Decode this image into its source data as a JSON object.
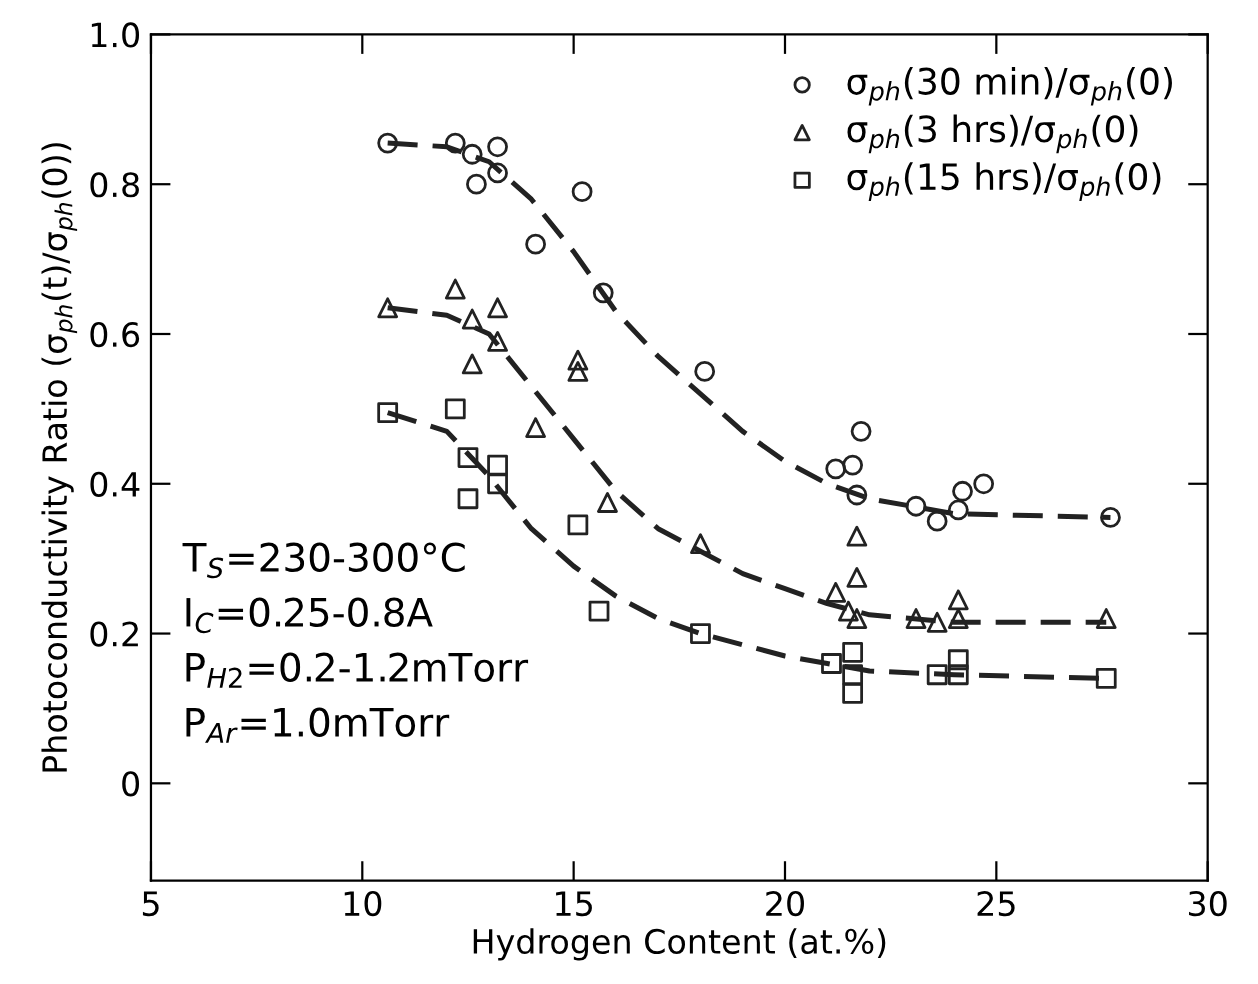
{
  "chart_data": {
    "type": "scatter",
    "xlabel": "Hydrogen Content (at.%)",
    "ylabel": "Photoconductivity Ratio (σ$_{ph}$(t)/σ$_{ph}$(0))",
    "xlim": [
      5,
      30
    ],
    "xticks": [
      5,
      10,
      15,
      20,
      25,
      30
    ],
    "ylim": [
      -0.13,
      1.0
    ],
    "yticks": [
      0,
      0.2,
      0.4,
      0.6,
      0.8,
      {
        "value": 1.0,
        "label": "1.0"
      }
    ],
    "grid": false,
    "legend": "top right",
    "series": [
      {
        "name": "σ$_{ph}$(30 min)/σ$_{ph}$(0)",
        "marker": "circle",
        "color": "#222222",
        "x": [
          10.6,
          12.2,
          12.6,
          13.2,
          12.7,
          13.2,
          14.1,
          15.2,
          15.7,
          18.1,
          21.2,
          21.6,
          21.7,
          21.8,
          23.1,
          23.6,
          24.1,
          24.2,
          24.7,
          27.7
        ],
        "values": [
          0.855,
          0.855,
          0.84,
          0.85,
          0.8,
          0.815,
          0.72,
          0.79,
          0.655,
          0.55,
          0.42,
          0.425,
          0.385,
          0.47,
          0.37,
          0.35,
          0.365,
          0.39,
          0.4,
          0.355
        ]
      },
      {
        "name": "σ$_{ph}$(3 hrs)/σ$_{ph}$(0)",
        "marker": "triangle",
        "color": "#222222",
        "x": [
          10.6,
          12.2,
          12.6,
          13.2,
          12.6,
          13.2,
          14.1,
          15.1,
          15.1,
          15.8,
          18.0,
          21.2,
          21.7,
          21.7,
          21.5,
          21.7,
          23.1,
          23.6,
          24.1,
          24.1,
          27.6
        ],
        "values": [
          0.635,
          0.66,
          0.62,
          0.635,
          0.56,
          0.59,
          0.475,
          0.565,
          0.55,
          0.375,
          0.32,
          0.255,
          0.33,
          0.275,
          0.23,
          0.22,
          0.22,
          0.215,
          0.245,
          0.22,
          0.22
        ]
      },
      {
        "name": "σ$_{ph}$(15 hrs)/σ$_{ph}$(0)",
        "marker": "square",
        "color": "#222222",
        "x": [
          10.6,
          12.2,
          12.5,
          12.5,
          13.2,
          13.2,
          15.1,
          15.6,
          18.0,
          21.1,
          21.6,
          21.6,
          21.6,
          23.6,
          24.1,
          24.1,
          27.6
        ],
        "values": [
          0.495,
          0.5,
          0.435,
          0.38,
          0.425,
          0.4,
          0.345,
          0.23,
          0.2,
          0.16,
          0.175,
          0.145,
          0.12,
          0.145,
          0.165,
          0.145,
          0.14
        ]
      },
      {
        "type": "line",
        "marker": "none",
        "line_style": "dashed",
        "color": "#222222",
        "x": [
          10.6,
          12,
          13,
          14,
          15,
          16,
          17,
          18,
          19,
          20,
          21,
          22,
          23,
          24,
          27.7
        ],
        "values": [
          0.855,
          0.85,
          0.83,
          0.78,
          0.71,
          0.63,
          0.57,
          0.52,
          0.47,
          0.43,
          0.4,
          0.38,
          0.37,
          0.36,
          0.355
        ]
      },
      {
        "type": "line",
        "marker": "none",
        "line_style": "dashed",
        "color": "#222222",
        "x": [
          10.6,
          12,
          13,
          14,
          15,
          16,
          17,
          18,
          19,
          20,
          21,
          22,
          24,
          27.6
        ],
        "values": [
          0.635,
          0.625,
          0.6,
          0.53,
          0.46,
          0.39,
          0.34,
          0.31,
          0.28,
          0.26,
          0.24,
          0.225,
          0.215,
          0.215
        ]
      },
      {
        "type": "line",
        "marker": "none",
        "line_style": "dashed",
        "color": "#222222",
        "x": [
          10.6,
          12,
          13,
          14,
          15,
          16,
          17,
          18,
          19,
          20,
          21,
          22,
          24,
          27.6
        ],
        "values": [
          0.495,
          0.47,
          0.41,
          0.34,
          0.29,
          0.25,
          0.22,
          0.2,
          0.185,
          0.17,
          0.16,
          0.15,
          0.145,
          0.14
        ]
      }
    ],
    "annotations": [
      "T$_{S}$=230-300°C",
      "I$_{C}$=0.25-0.8A",
      "P$_{H2}$=0.2-1.2mTorr",
      "P$_{Ar}$=1.0mTorr"
    ]
  }
}
